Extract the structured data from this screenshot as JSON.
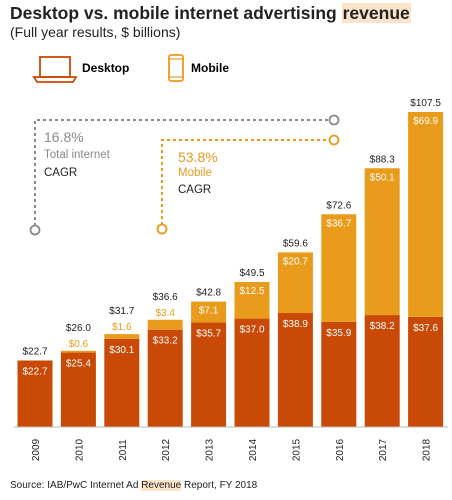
{
  "title_before": "Desktop vs. mobile internet advertising ",
  "title_highlight": "revenue",
  "subtitle": "(Full year results, $ billions)",
  "legend": {
    "desktop": "Desktop",
    "mobile": "Mobile"
  },
  "annotations": {
    "total": {
      "value": "16.8%",
      "label": "Total internet",
      "cagr": "CAGR"
    },
    "mobile": {
      "value": "53.8%",
      "label": "Mobile",
      "cagr": "CAGR"
    }
  },
  "source_before": "Source: IAB/PwC Internet Ad ",
  "source_highlight": "Revenue",
  "source_after": " Report,  FY 2018",
  "colors": {
    "desktop": "#c94a06",
    "mobile": "#e99b1b",
    "desktop_text": "#c94a06",
    "mobile_text": "#e99b1b",
    "gray": "#8a8a8a"
  },
  "chart_data": {
    "type": "bar",
    "stacked": true,
    "categories": [
      "2009",
      "2010",
      "2011",
      "2012",
      "2013",
      "2014",
      "2015",
      "2016",
      "2017",
      "2018"
    ],
    "series": [
      {
        "name": "Desktop",
        "values": [
          22.7,
          25.4,
          30.1,
          33.2,
          35.7,
          37.0,
          38.9,
          35.9,
          38.2,
          37.6
        ],
        "labels": [
          "$22.7",
          "$25.4",
          "$30.1",
          "$33.2",
          "$35.7",
          "$37.0",
          "$38.9",
          "$35.9",
          "$38.2",
          "$37.6"
        ]
      },
      {
        "name": "Mobile",
        "values": [
          0,
          0.6,
          1.6,
          3.4,
          7.1,
          12.5,
          20.7,
          36.7,
          50.1,
          69.9
        ],
        "labels": [
          "",
          "$0.6",
          "$1.6",
          "$3.4",
          "$7.1",
          "$12.5",
          "$20.7",
          "$36.7",
          "$50.1",
          "$69.9"
        ]
      }
    ],
    "totals": [
      22.7,
      26.0,
      31.7,
      36.6,
      42.8,
      49.5,
      59.6,
      72.6,
      88.3,
      107.5
    ],
    "total_labels": [
      "$22.7",
      "$26.0",
      "$31.7",
      "$36.6",
      "$42.8",
      "$49.5",
      "$59.6",
      "$72.6",
      "$88.3",
      "$107.5"
    ],
    "ylim": [
      0,
      107.5
    ],
    "grid": false
  }
}
